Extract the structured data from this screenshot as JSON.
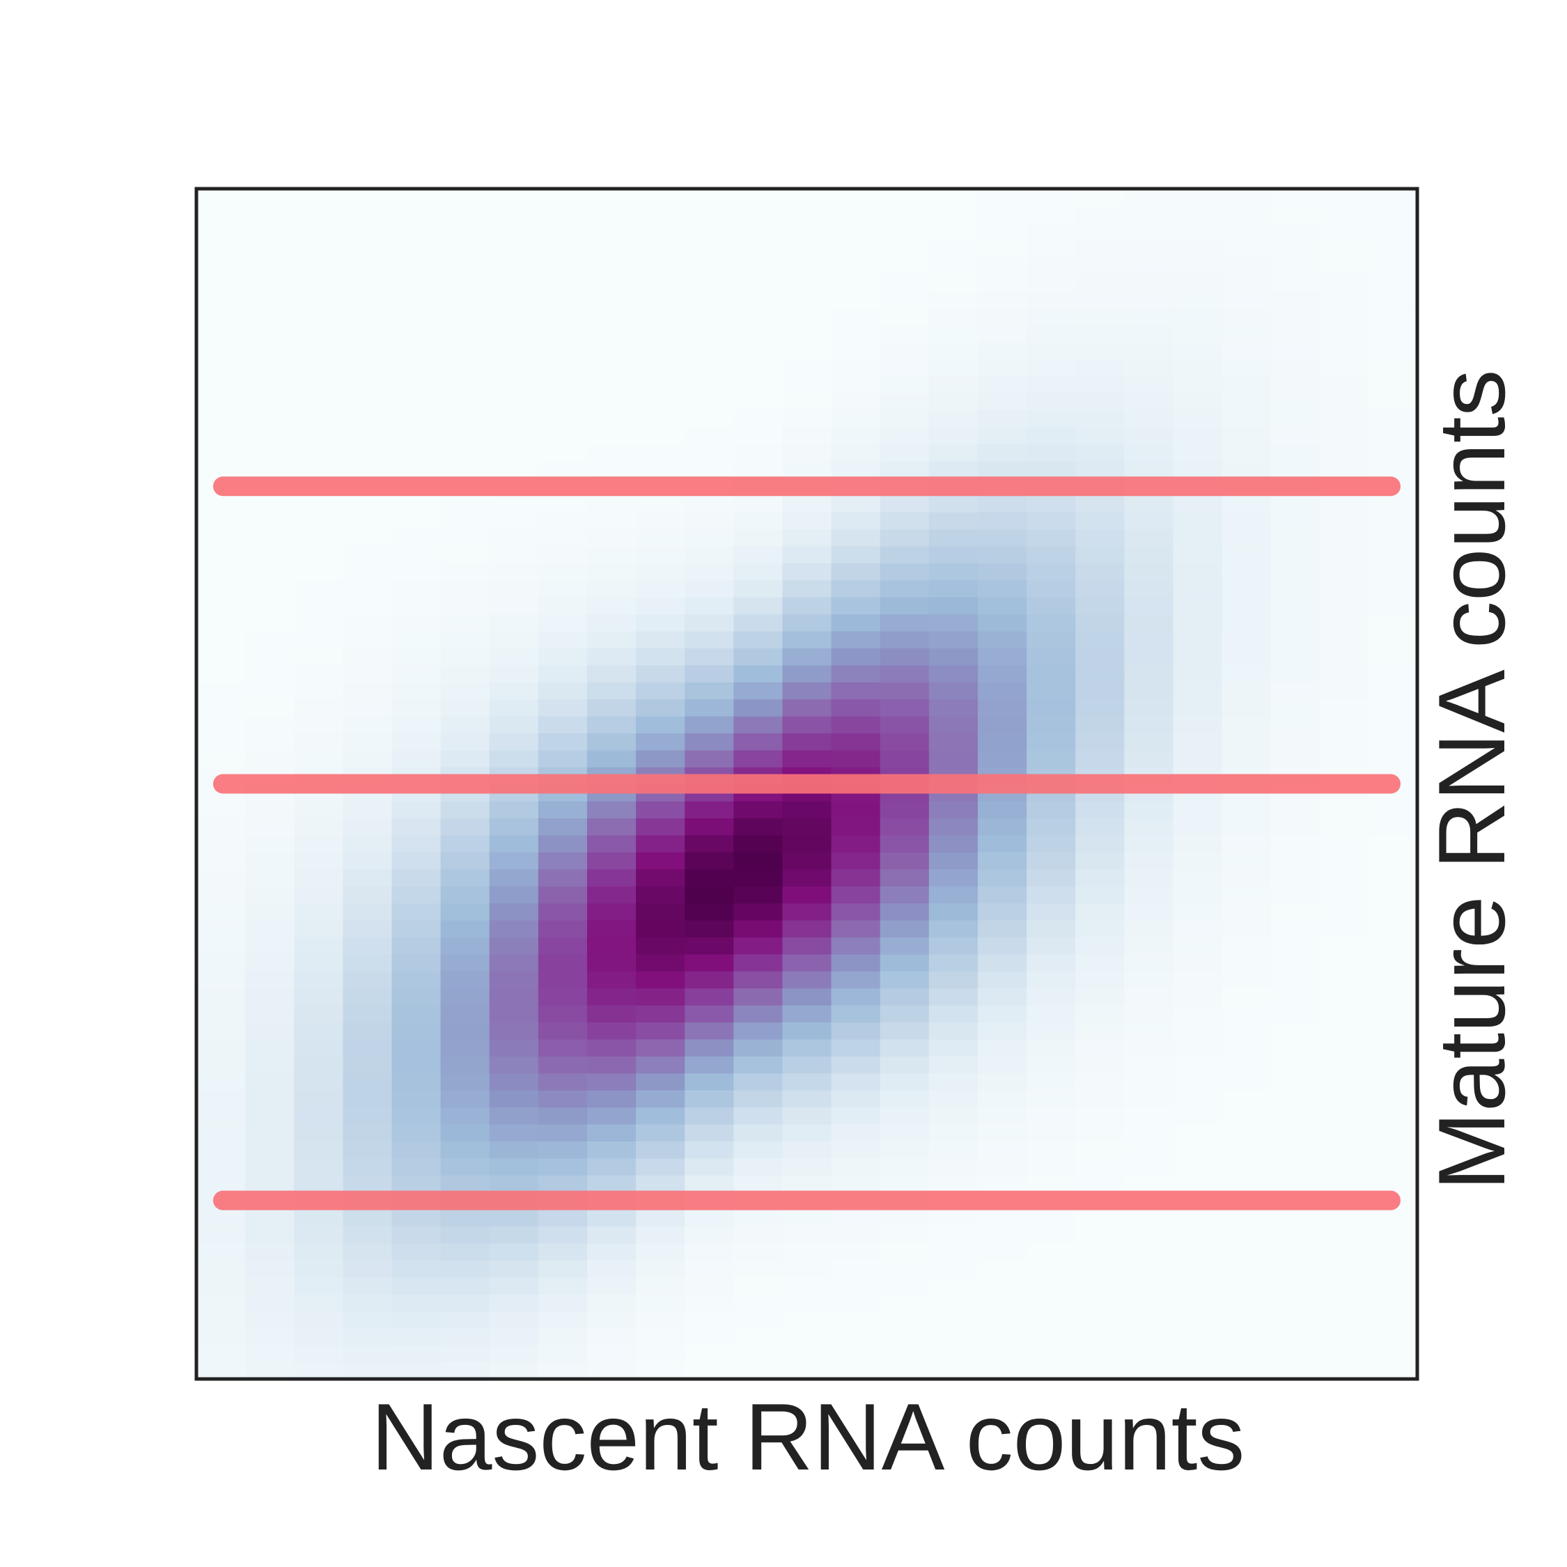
{
  "chart_data": {
    "type": "heatmap",
    "xlabel": "Nascent RNA counts",
    "ylabel": "Mature RNA counts",
    "x_bins": 25,
    "y_range": [
      0,
      100
    ],
    "colormap": "BuPu",
    "grid": false,
    "legend": "none",
    "distribution": {
      "description_values": "density peak per nascent bin (mature count units)",
      "peak_x_bin": 10.5,
      "peak_y": 42,
      "sigma_x_bins": 3.6,
      "sigma_y": 9,
      "tilt_y_per_bin": 2.3
    },
    "reference_lines": [
      {
        "y": 75,
        "color": "#f87278"
      },
      {
        "y": 50,
        "color": "#f87278"
      },
      {
        "y": 15,
        "color": "#f87278"
      }
    ]
  }
}
